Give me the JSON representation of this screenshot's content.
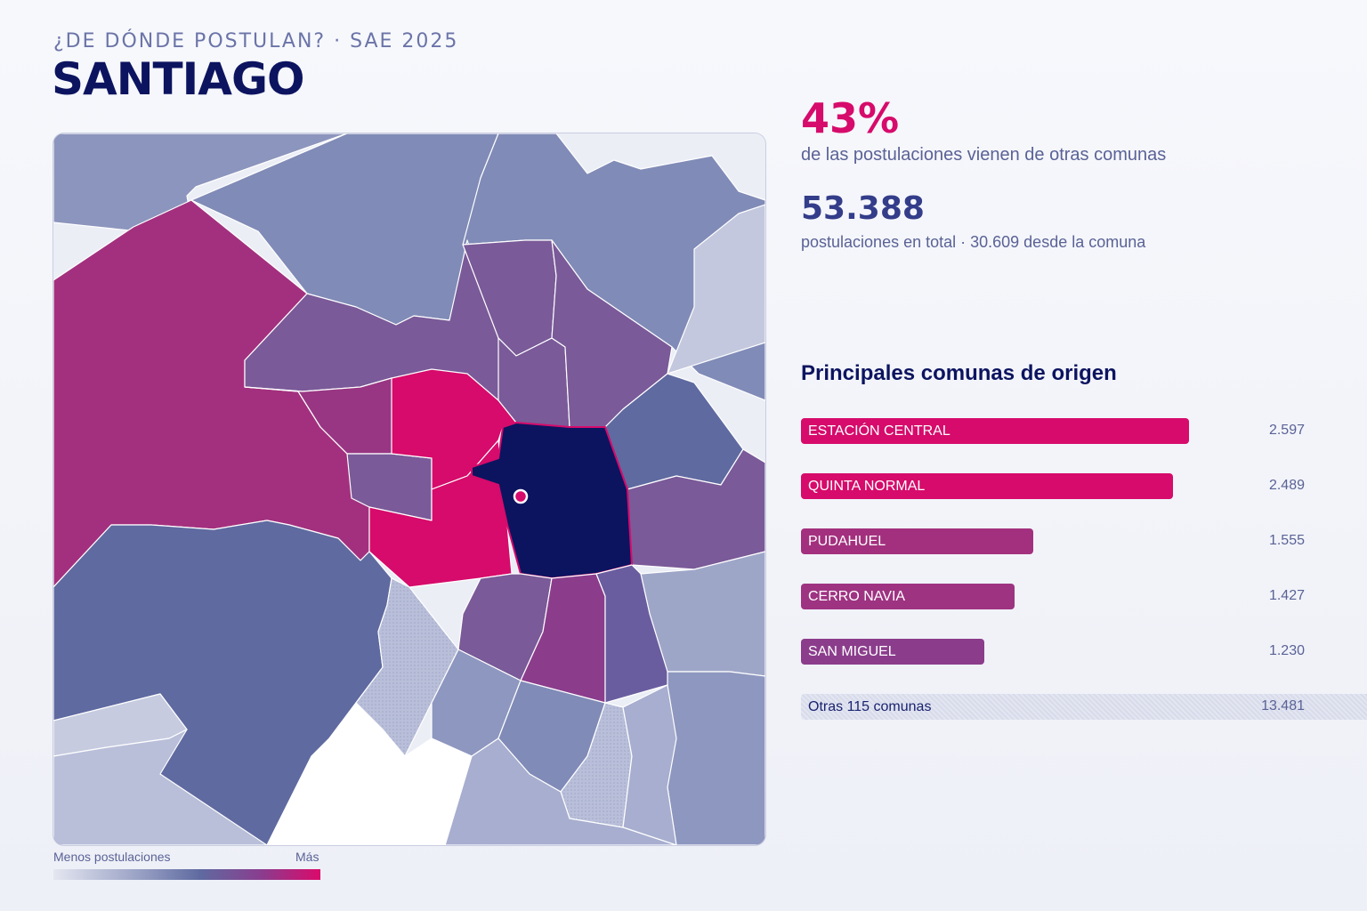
{
  "header": {
    "kicker": "¿DE DÓNDE POSTULAN? · SAE 2025",
    "title": "SANTIAGO"
  },
  "stats": {
    "share_value": "43%",
    "share_desc": "de las postulaciones vienen de otras comunas",
    "total_value": "53.388",
    "total_desc": "postulaciones en total · 30.609 desde la comuna"
  },
  "ranking": {
    "title": "Principales comunas de origen",
    "items": [
      {
        "name": "ESTACIÓN CENTRAL",
        "value": "2.597",
        "count": 2597,
        "color": "#d60b6b"
      },
      {
        "name": "QUINTA NORMAL",
        "value": "2.489",
        "count": 2489,
        "color": "#d60b6b"
      },
      {
        "name": "PUDAHUEL",
        "value": "1.555",
        "count": 1555,
        "color": "#a3307e"
      },
      {
        "name": "CERRO NAVIA",
        "value": "1.427",
        "count": 1427,
        "color": "#9e3382"
      },
      {
        "name": "SAN MIGUEL",
        "value": "1.230",
        "count": 1230,
        "color": "#8b3d8c"
      }
    ],
    "others_label": "Otras 115 comunas",
    "others_value": "13.481"
  },
  "legend": {
    "low_label": "Menos postulaciones",
    "high_label": "Más"
  },
  "colors": {
    "highlight": "#d60b6b",
    "selected": "#0c1460",
    "accent_text": "#0c1460"
  }
}
